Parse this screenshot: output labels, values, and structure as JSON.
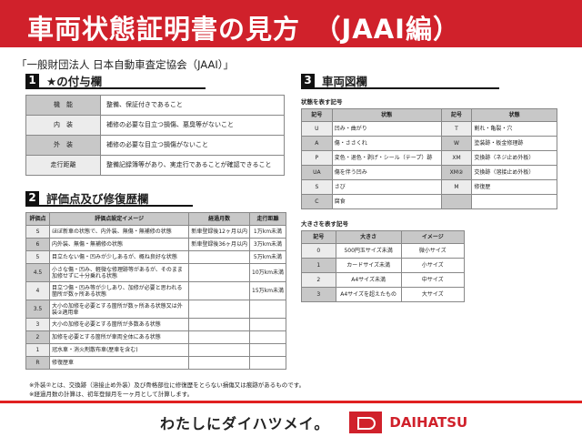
{
  "title": "車両状態証明書の見方　（JAAI編）",
  "organization": "「一般財団法人 日本自動車査定協会（JAAI）」",
  "section1": {
    "num": "1",
    "title": "★の付与欄",
    "rows": [
      [
        "機　能",
        "整備、保証付きであること"
      ],
      [
        "内　装",
        "補修の必要な目立つ損傷、悪臭等がないこと"
      ],
      [
        "外　装",
        "補修の必要な目立つ損傷がないこと"
      ],
      [
        "走行距離",
        "整備記録簿等があり、実走行であることが確認できること"
      ]
    ]
  },
  "section2": {
    "num": "2",
    "title": "評価点及び修復歴欄",
    "headers": [
      "評価点",
      "評価点設定イメージ",
      "経過月数",
      "走行距離"
    ],
    "rows": [
      [
        "S",
        "ほぼ新車の状態で、内外装、無傷・無補修の状態",
        "新車登録後12ヶ月以内",
        "1万km未満"
      ],
      [
        "6",
        "内外装、無傷・無補修の状態",
        "新車登録後36ヶ月以内",
        "3万km未満"
      ],
      [
        "5",
        "目立たない傷・凹みが少しあるが、概ね良好な状態",
        "",
        "5万km未満"
      ],
      [
        "4.5",
        "小さな傷・凹み、軽微な修理跡等があるが、そのまま加修せずに十分乗れる状態",
        "",
        "10万km未満"
      ],
      [
        "4",
        "目立つ傷・凹み等が少しあり、加修が必要と思われる箇所が数ヶ所ある状態",
        "",
        "15万km未満"
      ],
      [
        "3.5",
        "大小の加修を必要とする箇所が数ヶ所ある状態又は外装②適用車",
        "",
        ""
      ],
      [
        "3",
        "大小の加修を必要とする箇所が多数ある状態",
        "",
        ""
      ],
      [
        "2",
        "加修を必要とする箇所が車両全体にある状態",
        "",
        ""
      ],
      [
        "1",
        "冠水車・消火剤散布車(歴車を含む)",
        "",
        ""
      ],
      [
        "R",
        "修復歴車",
        "",
        ""
      ]
    ]
  },
  "section3": {
    "num": "3",
    "title": "車両図欄",
    "state_label": "状態を表す記号",
    "state_headers": [
      "記号",
      "状態",
      "記号",
      "状態"
    ],
    "state_rows": [
      [
        "U",
        "凹み・曲がり",
        "T",
        "割れ・亀裂・穴"
      ],
      [
        "A",
        "傷・ささくれ",
        "W",
        "塗装跡・板金修理跡"
      ],
      [
        "P",
        "変色・退色・剥げ・シール（テープ）跡",
        "XM",
        "交換跡（ネジ止め外板）"
      ],
      [
        "UA",
        "傷を伴う凹み",
        "XM②",
        "交換跡（溶接止め外板）"
      ],
      [
        "S",
        "さび",
        "M",
        "修復歴"
      ],
      [
        "C",
        "腐食",
        "",
        ""
      ]
    ],
    "size_label": "大きさを表す記号",
    "size_headers": [
      "記号",
      "大きさ",
      "イメージ"
    ],
    "size_rows": [
      [
        "0",
        "500円玉サイズ未満",
        "微小サイズ"
      ],
      [
        "1",
        "カードサイズ未満",
        "小サイズ"
      ],
      [
        "2",
        "A4サイズ未満",
        "中サイズ"
      ],
      [
        "3",
        "A4サイズを超えたもの",
        "大サイズ"
      ]
    ]
  },
  "notes": [
    "※外装②とは、交換跡（溶接止め外装）及び骨格部位に修復歴をとらない損傷又は痕跡があるものです。",
    "※経過月数の計算は、初年登録月を一ヶ月として計算します。"
  ],
  "footer": {
    "slogan": "わたしにダイハツメイ。",
    "brand": "DAIHATSU"
  },
  "colors": {
    "banner": "#d0212b",
    "header_gray": "#c8c8c8"
  }
}
